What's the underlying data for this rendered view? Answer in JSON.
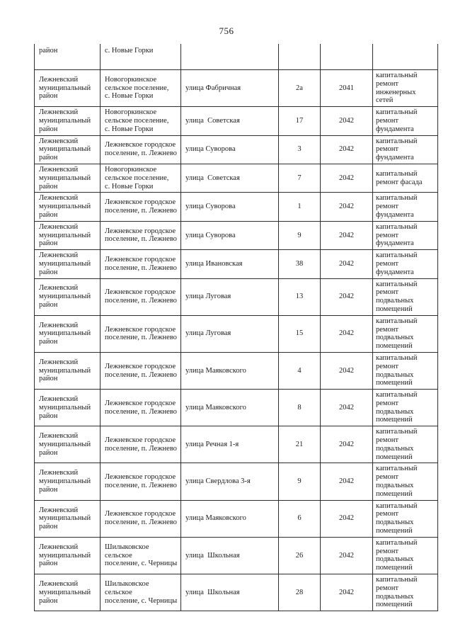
{
  "page": {
    "number": "756"
  },
  "table": {
    "columns": [
      "district",
      "settlement",
      "street",
      "house_number",
      "year",
      "repair_type"
    ],
    "rows": [
      [
        "район",
        "с. Новые Горки",
        "",
        "",
        "",
        ""
      ],
      [
        "Лежневский\nмуниципальный\nрайон",
        "Новогоркинское\nсельское поселение,\nс. Новые Горки",
        "улица Фабричная",
        "2а",
        "2041",
        "капитальный\nремонт\nинженерных\nсетей"
      ],
      [
        "Лежневский\nмуниципальный\nрайон",
        "Новогоркинское\nсельское поселение,\nс. Новые Горки",
        "улица  Советская",
        "17",
        "2042",
        "капитальный\nремонт\nфундамента"
      ],
      [
        "Лежневский\nмуниципальный\nрайон",
        "Лежневское городское\nпоселение, п. Лежнево",
        "улица Суворова",
        "3",
        "2042",
        "капитальный\nремонт\nфундамента"
      ],
      [
        "Лежневский\nмуниципальный\nрайон",
        "Новогоркинское\nсельское поселение,\nс. Новые Горки",
        "улица  Советская",
        "7",
        "2042",
        "капитальный\nремонт фасада"
      ],
      [
        "Лежневский\nмуниципальный\nрайон",
        "Лежневское городское\nпоселение, п. Лежнево",
        "улица Суворова",
        "1",
        "2042",
        "капитальный\nремонт\nфундамента"
      ],
      [
        "Лежневский\nмуниципальный\nрайон",
        "Лежневское городское\nпоселение, п. Лежнево",
        "улица Суворова",
        "9",
        "2042",
        "капитальный\nремонт\nфундамента"
      ],
      [
        "Лежневский\nмуниципальный\nрайон",
        "Лежневское городское\nпоселение, п. Лежнево",
        "улица Ивановская",
        "38",
        "2042",
        "капитальный\nремонт\nфундамента"
      ],
      [
        "Лежневский\nмуниципальный\nрайон",
        "Лежневское городское\nпоселение, п. Лежнево",
        "улица Луговая",
        "13",
        "2042",
        "капитальный\nремонт\nподвальных\nпомещений"
      ],
      [
        "Лежневский\nмуниципальный\nрайон",
        "Лежневское городское\nпоселение, п. Лежнево",
        "улица Луговая",
        "15",
        "2042",
        "капитальный\nремонт\nподвальных\nпомещений"
      ],
      [
        "Лежневский\nмуниципальный\nрайон",
        "Лежневское городское\nпоселение, п. Лежнево",
        "улица Маяковского",
        "4",
        "2042",
        "капитальный\nремонт\nподвальных\nпомещений"
      ],
      [
        "Лежневский\nмуниципальный\nрайон",
        "Лежневское городское\nпоселение, п. Лежнево",
        "улица Маяковского",
        "8",
        "2042",
        "капитальный\nремонт\nподвальных\nпомещений"
      ],
      [
        "Лежневский\nмуниципальный\nрайон",
        "Лежневское городское\nпоселение, п. Лежнево",
        "улица Речная 1-я",
        "21",
        "2042",
        "капитальный\nремонт\nподвальных\nпомещений"
      ],
      [
        "Лежневский\nмуниципальный\nрайон",
        "Лежневское городское\nпоселение, п. Лежнево",
        "улица Свердлова 3-я",
        "9",
        "2042",
        "капитальный\nремонт\nподвальных\nпомещений"
      ],
      [
        "Лежневский\nмуниципальный\nрайон",
        "Лежневское городское\nпоселение, п. Лежнево",
        "улица Маяковского",
        "6",
        "2042",
        "капитальный\nремонт\nподвальных\nпомещений"
      ],
      [
        "Лежневский\nмуниципальный\nрайон",
        "Шилыковское сельское\nпоселение, с. Черницы",
        "улица  Школьная",
        "26",
        "2042",
        "капитальный\nремонт\nподвальных\nпомещений"
      ],
      [
        "Лежневский\nмуниципальный\nрайон",
        "Шилыковское сельское\nпоселение, с. Черницы",
        "улица  Школьная",
        "28",
        "2042",
        "капитальный\nремонт\nподвальных\nпомещений"
      ]
    ]
  }
}
